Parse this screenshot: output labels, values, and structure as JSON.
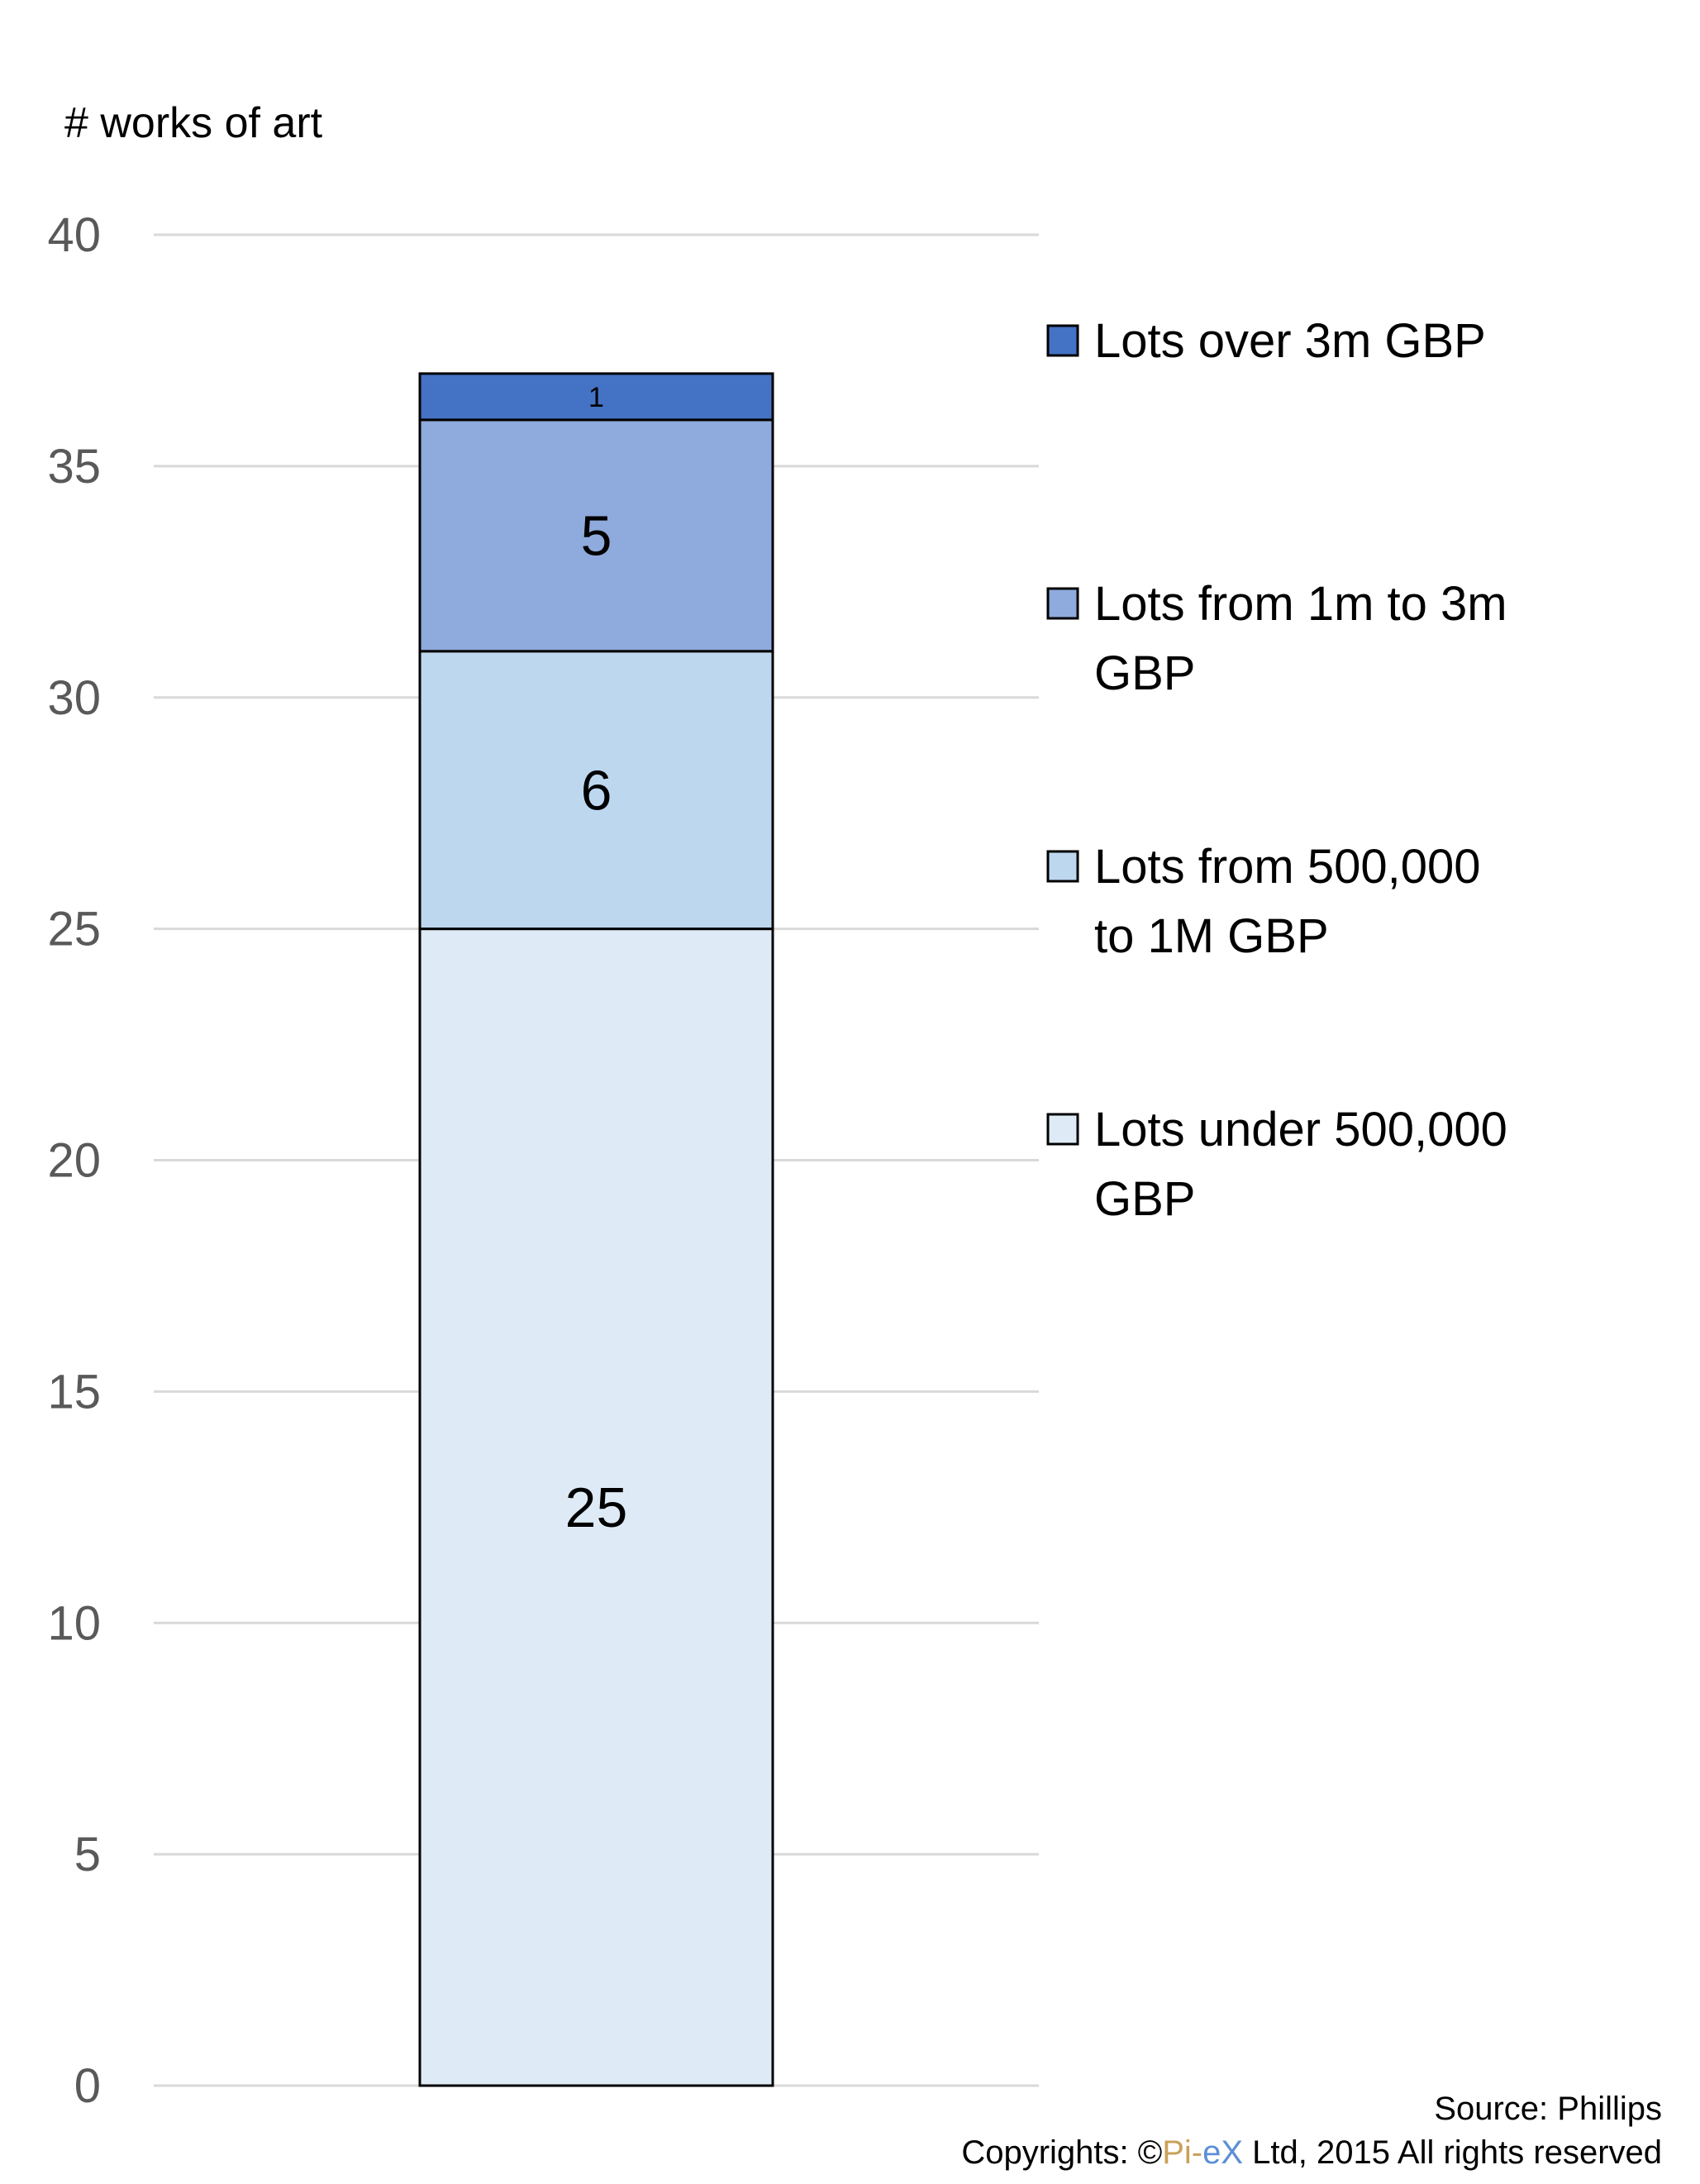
{
  "chart_data": {
    "type": "bar",
    "stacked": true,
    "ylabel": "# works of art",
    "ylim": [
      0,
      40
    ],
    "yticks": [
      0,
      5,
      10,
      15,
      20,
      25,
      30,
      35,
      40
    ],
    "grid": true,
    "legend_position": "right",
    "categories": [
      ""
    ],
    "series": [
      {
        "name": "Lots under 500,000 GBP",
        "legend_lines": [
          "Lots under 500,000",
          "GBP"
        ],
        "values": [
          25
        ],
        "color": "#DEEBF7",
        "label": "25"
      },
      {
        "name": "Lots from 500,000 to 1M GBP",
        "legend_lines": [
          "Lots from 500,000",
          "to 1M GBP"
        ],
        "values": [
          6
        ],
        "color": "#BDD7EE",
        "label": "6"
      },
      {
        "name": "Lots from 1m to 3m GBP",
        "legend_lines": [
          "Lots from 1m to 3m",
          "GBP"
        ],
        "values": [
          5
        ],
        "color": "#8FAADC",
        "label": "5"
      },
      {
        "name": "Lots over 3m GBP",
        "legend_lines": [
          "Lots over 3m GBP"
        ],
        "values": [
          1
        ],
        "color": "#4472C4",
        "label": "1"
      }
    ]
  },
  "footer": {
    "source": "Source: Phillips",
    "copyright_prefix": "Copyrights: ©",
    "brand_pi": "Pi",
    "brand_dash": "-",
    "brand_ex": "eX",
    "copyright_suffix": " Ltd, 2015 All rights reserved",
    "brand_pi_color": "#C9A15B",
    "brand_ex_color": "#5B8FD6"
  }
}
